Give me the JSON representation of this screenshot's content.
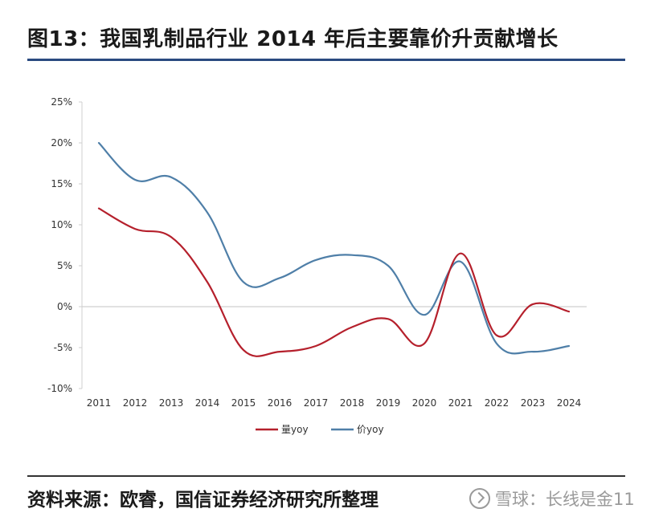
{
  "title": "图13：我国乳制品行业 2014 年后主要靠价升贡献增长",
  "source": "资料来源：欧睿，国信证券经济研究所整理",
  "watermark": "雪球：长线是金11",
  "colors": {
    "volume": "#b5202c",
    "price": "#4f7fa8",
    "title_rule": "#2a4a80"
  },
  "chart_data": {
    "type": "line",
    "x": [
      2011,
      2012,
      2013,
      2014,
      2015,
      2016,
      2017,
      2018,
      2019,
      2020,
      2021,
      2022,
      2023,
      2024
    ],
    "ylim": [
      -10,
      25
    ],
    "yticks": [
      -10,
      -5,
      0,
      5,
      10,
      15,
      20,
      25
    ],
    "ytick_labels": [
      "-10%",
      "-5%",
      "0%",
      "5%",
      "10%",
      "15%",
      "20%",
      "25%"
    ],
    "series": [
      {
        "name": "量yoy",
        "color": "#b5202c",
        "values": [
          12.0,
          9.5,
          8.5,
          3.0,
          -5.3,
          -5.5,
          -4.8,
          -2.5,
          -1.5,
          -4.5,
          6.5,
          -3.5,
          0.3,
          -0.6
        ]
      },
      {
        "name": "价yoy",
        "color": "#4f7fa8",
        "values": [
          20.0,
          15.5,
          15.8,
          11.5,
          3.0,
          3.5,
          5.7,
          6.3,
          5.0,
          -1.0,
          5.5,
          -4.5,
          -5.5,
          -4.8
        ]
      }
    ],
    "legend_position": "bottom-center",
    "grid": false,
    "xlabel": "",
    "ylabel": ""
  }
}
